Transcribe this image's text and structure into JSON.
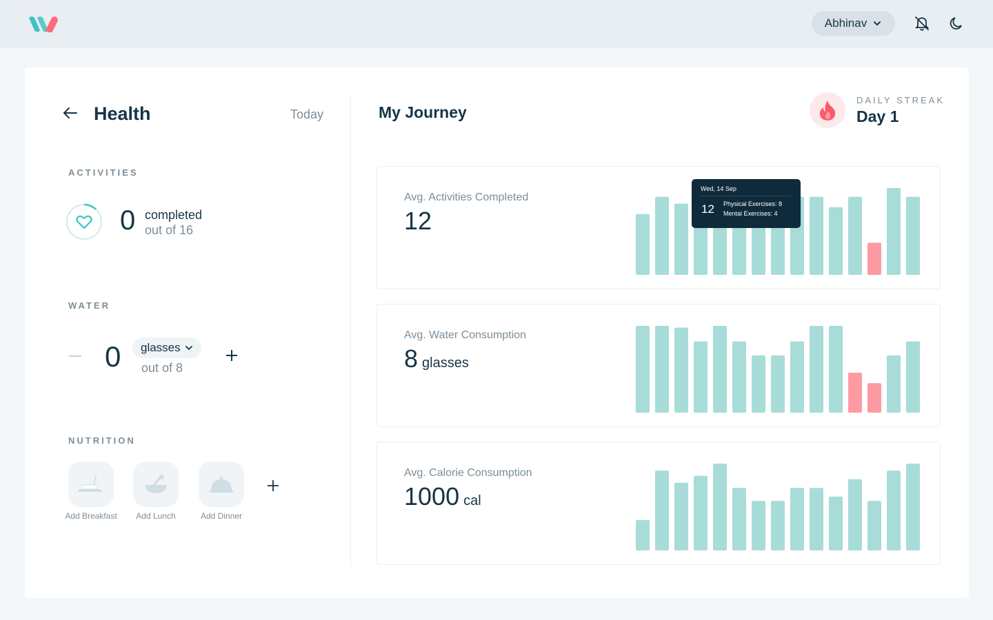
{
  "header": {
    "user_name": "Abhinav",
    "icons": [
      "logo-icon",
      "chevron-down-icon",
      "bell-off-icon",
      "moon-icon"
    ]
  },
  "left_panel": {
    "title": "Health",
    "period": "Today",
    "activities": {
      "label": "ACTIVITIES",
      "count": "0",
      "completed_text": "completed",
      "out_of": "out of 16",
      "progress": 0
    },
    "water": {
      "label": "WATER",
      "count": "0",
      "unit": "glasses",
      "out_of": "out of 8"
    },
    "nutrition": {
      "label": "NUTRITION",
      "meals": [
        {
          "label": "Add Breakfast",
          "icon": "breakfast-icon"
        },
        {
          "label": "Add Lunch",
          "icon": "lunch-icon"
        },
        {
          "label": "Add Dinner",
          "icon": "dinner-icon"
        }
      ]
    }
  },
  "right_panel": {
    "title": "My Journey",
    "streak": {
      "label": "DAILY STREAK",
      "value": "Day 1"
    },
    "tooltip": {
      "date": "Wed, 14 Sep",
      "value": "12",
      "physical": "Physical Exercises: 8",
      "mental": "Mental Exercises: 4"
    },
    "colors": {
      "bar": "#a7dcd9",
      "bar_highlight": "#fe9aa2",
      "tooltip_bg": "#0f2b3b"
    }
  },
  "chart_data": [
    {
      "type": "bar",
      "title": "Avg. Activities Completed",
      "value": "12",
      "unit": "",
      "values": [
        7,
        9,
        8.2,
        9,
        9,
        9,
        9,
        9,
        9,
        9,
        7.8,
        9,
        3.7,
        10,
        9
      ],
      "highlight_index": 12,
      "ylim": [
        0,
        10
      ]
    },
    {
      "type": "bar",
      "title": "Avg. Water Consumption",
      "value": "8",
      "unit": "glasses",
      "values": [
        10,
        10,
        9.8,
        8.2,
        10,
        8.2,
        6.6,
        6.6,
        8.2,
        10,
        10,
        4.6,
        3.4,
        6.6,
        8.2
      ],
      "highlight_indices": [
        11,
        12
      ],
      "ylim": [
        0,
        10
      ]
    },
    {
      "type": "bar",
      "title": "Avg. Calorie Consumption",
      "value": "1000",
      "unit": "cal",
      "values": [
        3.5,
        9.2,
        7.8,
        8.6,
        10,
        7.2,
        5.7,
        5.7,
        7.2,
        7.2,
        6.2,
        8.2,
        5.7,
        9.2,
        10
      ],
      "highlight_indices": [],
      "ylim": [
        0,
        10
      ]
    }
  ]
}
